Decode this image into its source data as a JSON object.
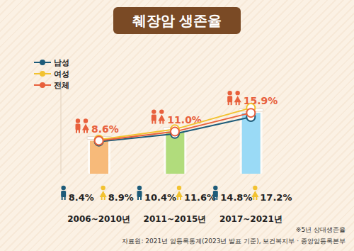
{
  "chart_data": {
    "type": "line",
    "title": "췌장암 생존율",
    "categories": [
      "2006~2010년",
      "2011~2015년",
      "2017~2021년"
    ],
    "series": [
      {
        "name": "남성",
        "color": "#1d5b79",
        "values": [
          8.4,
          10.4,
          14.8
        ],
        "value_labels": [
          "8.4%",
          "10.4%",
          "14.8%"
        ],
        "marker": "circle"
      },
      {
        "name": "여성",
        "color": "#f2c230",
        "values": [
          8.9,
          11.6,
          17.2
        ],
        "value_labels": [
          "8.9%",
          "11.6%",
          "17.2%"
        ],
        "marker": "circle"
      },
      {
        "name": "전체",
        "color": "#e8603c",
        "values": [
          8.6,
          11.0,
          15.9
        ],
        "value_labels": [
          "8.6%",
          "11.0%",
          "15.9%"
        ],
        "marker": "circle"
      }
    ],
    "colors": [
      "#f6b26b",
      "#a9d86e",
      "#8fd6f5"
    ],
    "ylim": [
      0,
      25
    ],
    "tick_labels": "x",
    "data_labels": true,
    "legend": "upper left",
    "note": "※5년 상대생존율",
    "source": "자료원: 2021년 암등록통계(2023년 발표 기준), 보건복지부 · 중앙암등록본부"
  }
}
